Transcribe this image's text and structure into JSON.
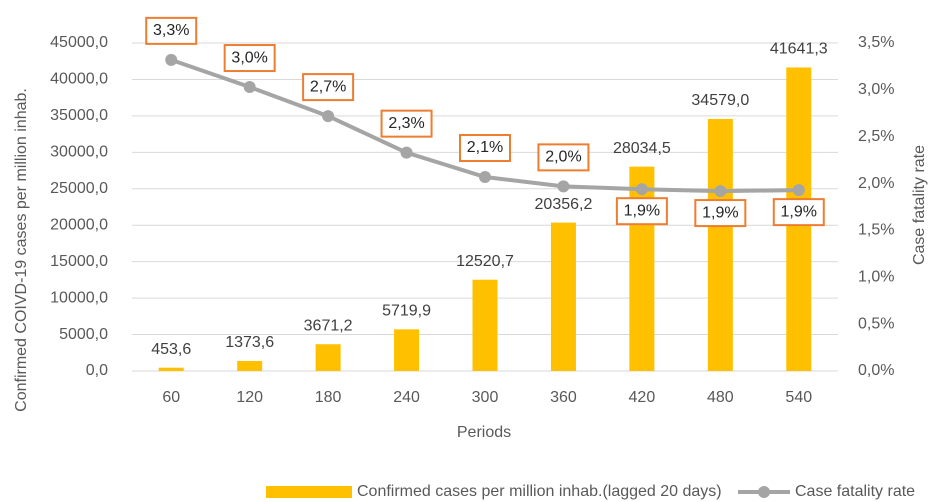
{
  "chart_data": {
    "type": "bar",
    "x_label": "Periods",
    "y_label": "Confirmed  COIVD-19 cases per million inhab.",
    "y2_label": "Case fatality rate",
    "categories": [
      "60",
      "120",
      "180",
      "240",
      "300",
      "360",
      "420",
      "480",
      "540"
    ],
    "series": [
      {
        "name": "Confirmed cases per million inhab.(lagged 20 days)",
        "type": "bar",
        "color": "#FFC000",
        "values": [
          453.6,
          1373.6,
          3671.2,
          5719.9,
          12520.7,
          20356.2,
          28034.5,
          34579.0,
          41641.3
        ],
        "value_labels": [
          "453,6",
          "1373,6",
          "3671,2",
          "5719,9",
          "12520,7",
          "20356,2",
          "28034,5",
          "34579,0",
          "41641,3"
        ]
      },
      {
        "name": "Case fatality rate",
        "type": "line",
        "axis": "y2",
        "color": "#A5A5A5",
        "label_border": "#ED7D31",
        "values": [
          3.32,
          3.03,
          2.72,
          2.33,
          2.07,
          1.97,
          1.94,
          1.92,
          1.93
        ],
        "value_labels": [
          "3,3%",
          "3,0%",
          "2,7%",
          "2,3%",
          "2,1%",
          "2,0%",
          "1,9%",
          "1,9%",
          "1,9%"
        ]
      }
    ],
    "ylim": [
      0,
      45000
    ],
    "yticks": [
      {
        "value": 0,
        "label": "0,0"
      },
      {
        "value": 5000,
        "label": "5000,0"
      },
      {
        "value": 10000,
        "label": "10000,0"
      },
      {
        "value": 15000,
        "label": "15000,0"
      },
      {
        "value": 20000,
        "label": "20000,0"
      },
      {
        "value": 25000,
        "label": "25000,0"
      },
      {
        "value": 30000,
        "label": "30000,0"
      },
      {
        "value": 35000,
        "label": "35000,0"
      },
      {
        "value": 40000,
        "label": "40000,0"
      },
      {
        "value": 45000,
        "label": "45000,0"
      }
    ],
    "y2lim": [
      0,
      3.5
    ],
    "y2ticks": [
      {
        "value": 0,
        "label": "0,0%"
      },
      {
        "value": 0.5,
        "label": "0,5%"
      },
      {
        "value": 1,
        "label": "1,0%"
      },
      {
        "value": 1.5,
        "label": "1,5%"
      },
      {
        "value": 2,
        "label": "2,0%"
      },
      {
        "value": 2.5,
        "label": "2,5%"
      },
      {
        "value": 3,
        "label": "3,0%"
      },
      {
        "value": 3.5,
        "label": "3,5%"
      }
    ],
    "grid": true
  }
}
